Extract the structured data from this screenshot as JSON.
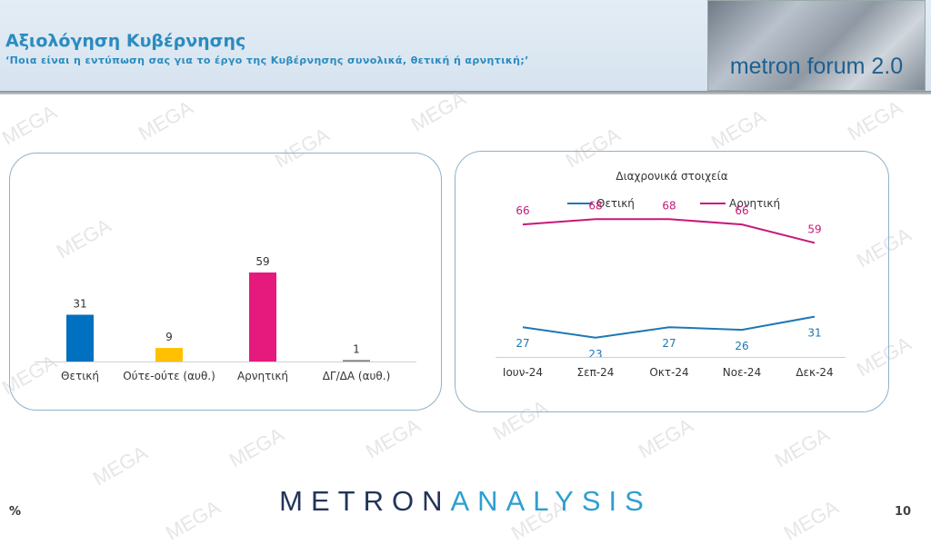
{
  "header": {
    "title": "Αξιολόγηση Κυβέρνησης",
    "subtitle": "‘Ποια είναι η εντύπωση σας για το έργο της Κυβέρνησης συνολικά, θετική ή αρνητική;’",
    "logo_text": "metron forum 2.0"
  },
  "watermark_text": "MEGA",
  "footer": {
    "brand_part1": "METRON",
    "brand_part2": "ANALYSIS",
    "unit": "%",
    "page_number": "10"
  },
  "colors": {
    "positive": "#0070c0",
    "neutral": "#ffc000",
    "negative": "#e6197d",
    "dk": "#808080",
    "accent": "#2a8bbf"
  },
  "chart_data": [
    {
      "type": "bar",
      "title": "",
      "categories": [
        "Θετική",
        "Ούτε-ούτε (αυθ.)",
        "Αρνητική",
        "ΔΓ/ΔΑ (αυθ.)"
      ],
      "values": [
        31,
        9,
        59,
        1
      ],
      "bar_colors": [
        "#0070c0",
        "#ffc000",
        "#e6197d",
        "#808080"
      ],
      "xlabel": "",
      "ylabel": "",
      "ylim": [
        0,
        59
      ],
      "grid": false,
      "legend": "none"
    },
    {
      "type": "line",
      "title": "Διαχρονικά στοιχεία",
      "x": [
        "Ιουν-24",
        "Σεπ-24",
        "Οκτ-24",
        "Νοε-24",
        "Δεκ-24"
      ],
      "series": [
        {
          "name": "Θετική",
          "values": [
            27,
            23,
            27,
            26,
            31
          ],
          "color": "#1f77b4"
        },
        {
          "name": "Αρνητική",
          "values": [
            66,
            68,
            68,
            66,
            59
          ],
          "color": "#c8187a"
        }
      ],
      "xlabel": "",
      "ylabel": "",
      "grid": false,
      "legend": "top"
    }
  ]
}
